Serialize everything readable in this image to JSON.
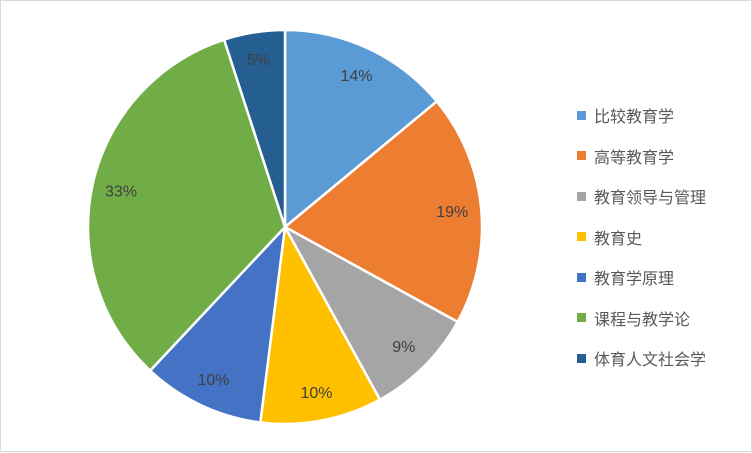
{
  "chart_data": {
    "type": "pie",
    "start": "top",
    "direction": "clockwise",
    "categories": [
      "比较教育学",
      "高等教育学",
      "教育领导与管理",
      "教育史",
      "教育学原理",
      "课程与教学论",
      "体育人文社会学"
    ],
    "values": [
      14,
      19,
      9,
      10,
      10,
      33,
      5
    ],
    "data_labels": [
      "14%",
      "19%",
      "9%",
      "10%",
      "10%",
      "33%",
      "5%"
    ],
    "colors": [
      "#5B9BD5",
      "#ED7D31",
      "#A5A5A5",
      "#FFC000",
      "#4472C4",
      "#70AD47",
      "#255E91"
    ],
    "legend_position": "right"
  }
}
